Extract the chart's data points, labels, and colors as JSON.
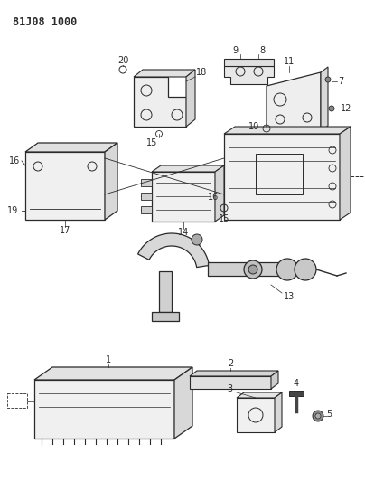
{
  "title": "81J08 1000",
  "bg_color": "#ffffff",
  "line_color": "#2a2a2a",
  "figsize": [
    4.04,
    5.33
  ],
  "dpi": 100
}
